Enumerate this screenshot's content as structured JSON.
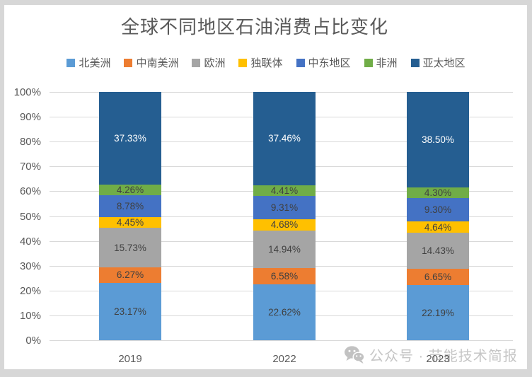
{
  "title": "全球不同地区石油消费占比变化",
  "chart_data": {
    "type": "bar",
    "subtype": "stacked-100-percent",
    "title": "全球不同地区石油消费占比变化",
    "categories": [
      "2019",
      "2022",
      "2023"
    ],
    "series": [
      {
        "name": "北美洲",
        "color": "#5B9BD5",
        "values": [
          23.17,
          22.62,
          22.19
        ]
      },
      {
        "name": "中南美洲",
        "color": "#ED7D31",
        "values": [
          6.27,
          6.58,
          6.65
        ]
      },
      {
        "name": "欧洲",
        "color": "#A5A5A5",
        "values": [
          15.73,
          14.94,
          14.43
        ]
      },
      {
        "name": "独联体",
        "color": "#FFC000",
        "values": [
          4.45,
          4.68,
          4.64
        ]
      },
      {
        "name": "中东地区",
        "color": "#4472C4",
        "values": [
          8.78,
          9.31,
          9.3
        ]
      },
      {
        "name": "非洲",
        "color": "#70AD47",
        "values": [
          4.26,
          4.41,
          4.3
        ]
      },
      {
        "name": "亚太地区",
        "color": "#255E91",
        "values": [
          37.33,
          37.46,
          38.5
        ],
        "label_color": "#FFFFFF"
      }
    ],
    "xlabel": "",
    "ylabel": "",
    "ylim": [
      0,
      100
    ],
    "ytick_step": 10,
    "ytick_labels": [
      "0%",
      "10%",
      "20%",
      "30%",
      "40%",
      "50%",
      "60%",
      "70%",
      "80%",
      "90%",
      "100%"
    ],
    "grid": true,
    "legend_position": "top",
    "data_labels": true,
    "data_label_format": "0.00%"
  },
  "watermark": {
    "icon": "wechat-icon",
    "text": "公众号 · 节能技术简报"
  },
  "colors": {
    "axis_text": "#595959",
    "label_text": "#404040",
    "label_text_on_dark": "#FFFFFF",
    "gridline": "#D9D9D9",
    "frame_bg": "#D7D7D7",
    "panel_bg": "#FFFFFF",
    "watermark": "#C6C6C6"
  }
}
